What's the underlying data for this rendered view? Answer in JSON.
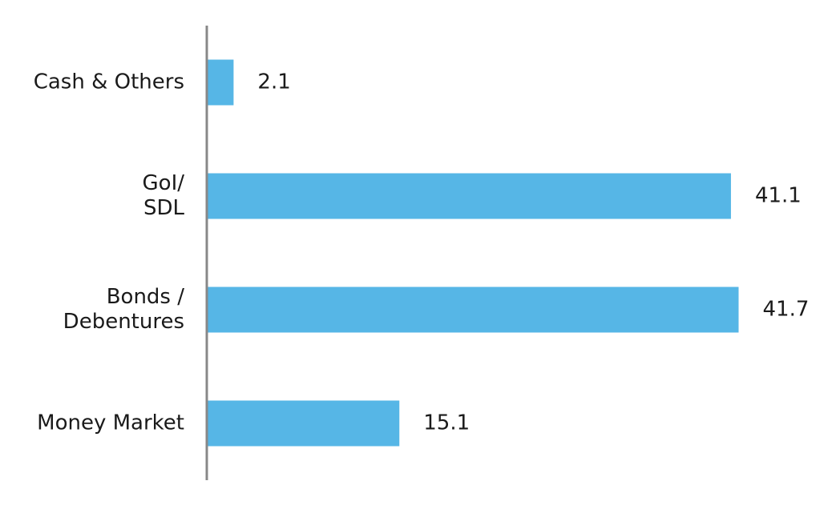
{
  "chart_data": {
    "type": "barh",
    "categories": [
      [
        "Cash & Others"
      ],
      [
        "GoI/",
        "SDL"
      ],
      [
        "Bonds /",
        "Debentures"
      ],
      [
        "Money Market"
      ]
    ],
    "values": [
      2.1,
      41.1,
      41.7,
      15.1
    ],
    "color": "#56b6e6",
    "xlim": [
      0,
      45
    ]
  }
}
